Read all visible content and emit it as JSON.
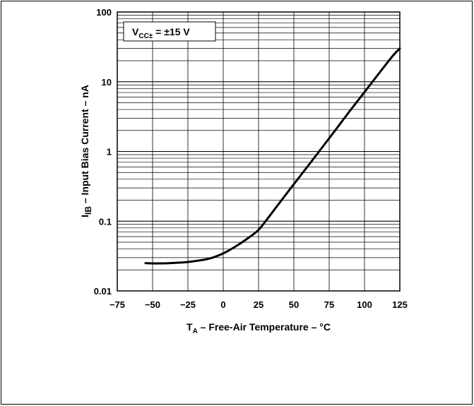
{
  "chart_data": {
    "type": "line",
    "y_scale": "log",
    "grid": true,
    "xlim": [
      -75,
      125
    ],
    "ylim": [
      0.01,
      100
    ],
    "x_ticks": [
      "−75",
      "−50",
      "−25",
      "0",
      "25",
      "50",
      "75",
      "100",
      "125"
    ],
    "x_tick_values": [
      -75,
      -50,
      -25,
      0,
      25,
      50,
      75,
      100,
      125
    ],
    "y_ticks": [
      "0.01",
      "0.1",
      "1",
      "10",
      "100"
    ],
    "y_tick_values": [
      0.01,
      0.1,
      1,
      10,
      100
    ],
    "xlabel": {
      "main": "T",
      "sub": "A",
      "rest": " – Free-Air Temperature – °C"
    },
    "ylabel": {
      "main": "I",
      "sub": "IB",
      "rest": " – Input Bias Current – nA"
    },
    "annotation": {
      "main": "V",
      "sub": "CC±",
      "rest": " = ±15 V"
    },
    "series": [
      {
        "x": [
          -55,
          -50,
          -45,
          -40,
          -30,
          -25,
          -20,
          -10,
          0,
          10,
          20,
          25,
          30,
          40,
          50,
          60,
          70,
          80,
          90,
          100,
          110,
          120,
          125
        ],
        "y": [
          0.025,
          0.0248,
          0.0248,
          0.0249,
          0.0255,
          0.026,
          0.0268,
          0.029,
          0.0345,
          0.045,
          0.062,
          0.075,
          0.1,
          0.185,
          0.34,
          0.62,
          1.14,
          2.1,
          3.9,
          7.1,
          13,
          23.5,
          30
        ]
      }
    ]
  }
}
